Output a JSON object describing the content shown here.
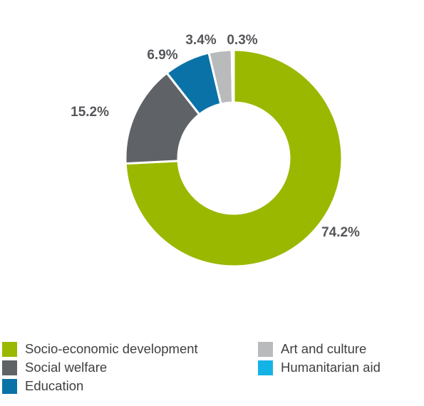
{
  "chart_data": {
    "type": "pie",
    "categories": [
      "Socio-economic development",
      "Social welfare",
      "Education",
      "Art and culture",
      "Humanitarian aid"
    ],
    "values": [
      74.2,
      15.2,
      6.9,
      3.4,
      0.3
    ],
    "data_labels": [
      "74.2%",
      "15.2%",
      "6.9%",
      "3.4%",
      "0.3%"
    ],
    "colors": [
      "#9bb800",
      "#5f6266",
      "#0b72a8",
      "#b9babb",
      "#14b3e6"
    ],
    "donut": true,
    "legend_position": "bottom"
  },
  "legend": {
    "items": [
      {
        "label": "Socio-economic development",
        "color": "#9bb800"
      },
      {
        "label": "Social welfare",
        "color": "#5f6266"
      },
      {
        "label": "Education",
        "color": "#0b72a8"
      },
      {
        "label": "Art and culture",
        "color": "#b9babb"
      },
      {
        "label": "Humanitarian aid",
        "color": "#14b3e6"
      }
    ]
  }
}
